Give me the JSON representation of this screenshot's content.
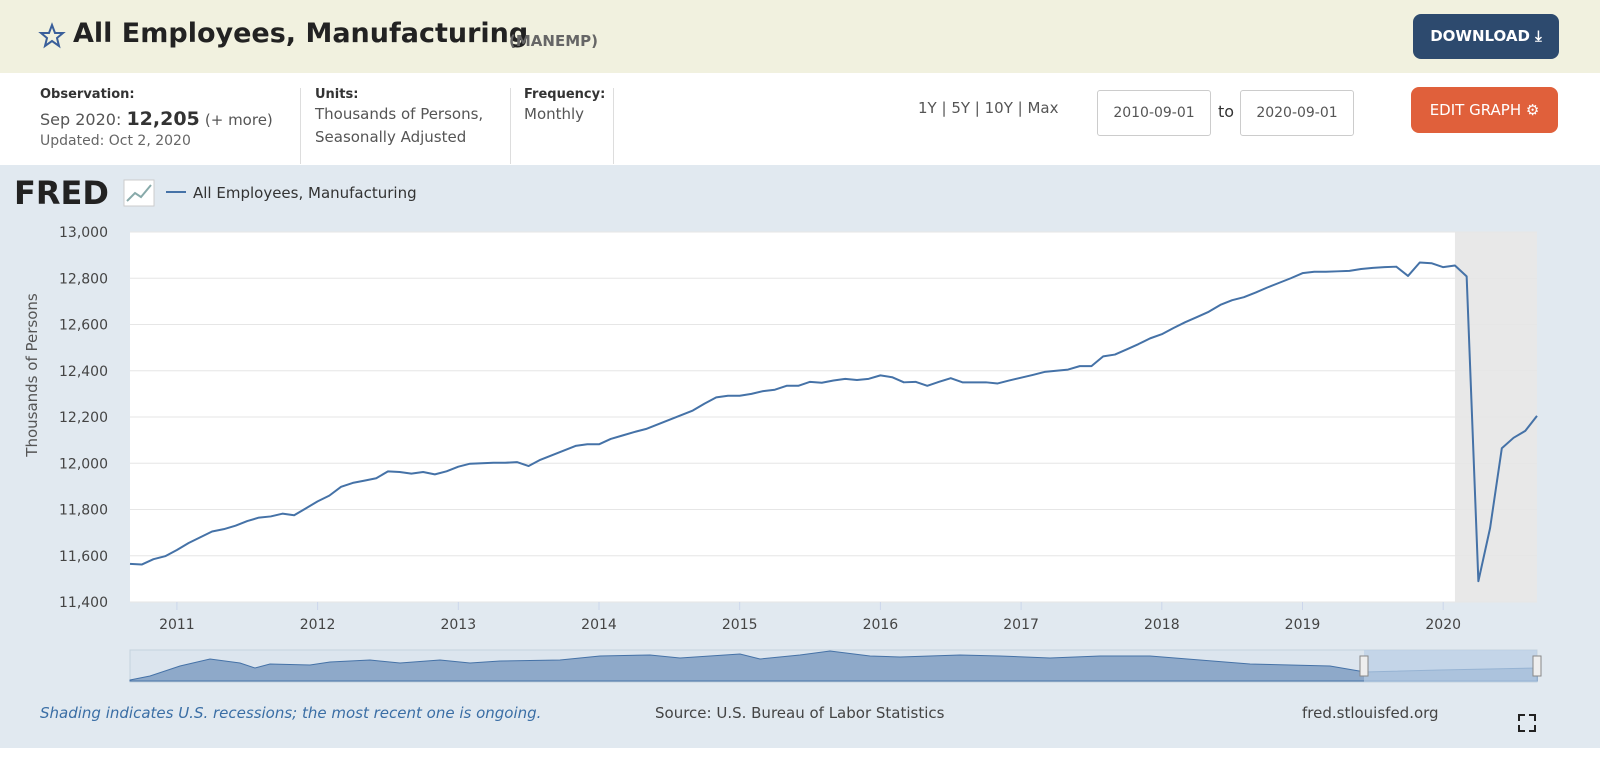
{
  "header": {
    "title": "All Employees, Manufacturing",
    "series_id": "(MANEMP)",
    "download": "DOWNLOAD"
  },
  "info": {
    "observation_label": "Observation:",
    "observation_period": "Sep 2020:",
    "observation_value": "12,205",
    "observation_more": "(+ more)",
    "updated": "Updated: Oct 2, 2020",
    "units_label": "Units:",
    "units_line1": "Thousands of Persons,",
    "units_line2": "Seasonally Adjusted",
    "frequency_label": "Frequency:",
    "frequency": "Monthly",
    "ranges": [
      "1Y",
      "5Y",
      "10Y",
      "Max"
    ],
    "date_from": "2010-09-01",
    "to": "to",
    "date_to": "2020-09-01",
    "edit_graph": "EDIT GRAPH"
  },
  "logo": "FRED",
  "footer": {
    "note": "Shading indicates U.S. recessions; the most recent one is ongoing.",
    "source": "Source: U.S. Bureau of Labor Statistics",
    "url": "fred.stlouisfed.org"
  },
  "chart_data": {
    "type": "line",
    "ylabel": "Thousands of Persons",
    "xlim": [
      "2010-09",
      "2020-09"
    ],
    "xticks": [
      2011,
      2012,
      2013,
      2014,
      2015,
      2016,
      2017,
      2018,
      2019,
      2020
    ],
    "ylim": [
      11400,
      13000
    ],
    "yticks": [
      {
        "value": 11400,
        "label": "11,400"
      },
      {
        "value": 11600,
        "label": "11,600"
      },
      {
        "value": 11800,
        "label": "11,800"
      },
      {
        "value": 12000,
        "label": "12,000"
      },
      {
        "value": 12200,
        "label": "12,200"
      },
      {
        "value": 12400,
        "label": "12,400"
      },
      {
        "value": 12600,
        "label": "12,600"
      },
      {
        "value": 12800,
        "label": "12,800"
      },
      {
        "value": 13000,
        "label": "13,000"
      }
    ],
    "grid": true,
    "recession": [
      "2020-02",
      "2020-09"
    ],
    "x": [
      "2010-09",
      "2010-10",
      "2010-11",
      "2010-12",
      "2011-01",
      "2011-02",
      "2011-03",
      "2011-04",
      "2011-05",
      "2011-06",
      "2011-07",
      "2011-08",
      "2011-09",
      "2011-10",
      "2011-11",
      "2011-12",
      "2012-01",
      "2012-02",
      "2012-03",
      "2012-04",
      "2012-05",
      "2012-06",
      "2012-07",
      "2012-08",
      "2012-09",
      "2012-10",
      "2012-11",
      "2012-12",
      "2013-01",
      "2013-02",
      "2013-03",
      "2013-04",
      "2013-05",
      "2013-06",
      "2013-07",
      "2013-08",
      "2013-09",
      "2013-10",
      "2013-11",
      "2013-12",
      "2014-01",
      "2014-02",
      "2014-03",
      "2014-04",
      "2014-05",
      "2014-06",
      "2014-07",
      "2014-08",
      "2014-09",
      "2014-10",
      "2014-11",
      "2014-12",
      "2015-01",
      "2015-02",
      "2015-03",
      "2015-04",
      "2015-05",
      "2015-06",
      "2015-07",
      "2015-08",
      "2015-09",
      "2015-10",
      "2015-11",
      "2015-12",
      "2016-01",
      "2016-02",
      "2016-03",
      "2016-04",
      "2016-05",
      "2016-06",
      "2016-07",
      "2016-08",
      "2016-09",
      "2016-10",
      "2016-11",
      "2016-12",
      "2017-01",
      "2017-02",
      "2017-03",
      "2017-04",
      "2017-05",
      "2017-06",
      "2017-07",
      "2017-08",
      "2017-09",
      "2017-10",
      "2017-11",
      "2017-12",
      "2018-01",
      "2018-02",
      "2018-03",
      "2018-04",
      "2018-05",
      "2018-06",
      "2018-07",
      "2018-08",
      "2018-09",
      "2018-10",
      "2018-11",
      "2018-12",
      "2019-01",
      "2019-02",
      "2019-03",
      "2019-04",
      "2019-05",
      "2019-06",
      "2019-07",
      "2019-08",
      "2019-09",
      "2019-10",
      "2019-11",
      "2019-12",
      "2020-01",
      "2020-02",
      "2020-03",
      "2020-04",
      "2020-05",
      "2020-06",
      "2020-07",
      "2020-08",
      "2020-09"
    ],
    "series": [
      {
        "name": "All Employees, Manufacturing",
        "color": "#4572a7",
        "values": [
          11565,
          11562,
          11585,
          11598,
          11625,
          11655,
          11680,
          11705,
          11715,
          11730,
          11750,
          11765,
          11770,
          11782,
          11775,
          11805,
          11835,
          11860,
          11898,
          11915,
          11925,
          11935,
          11965,
          11962,
          11955,
          11962,
          11952,
          11965,
          11985,
          11998,
          12000,
          12002,
          12002,
          12005,
          11988,
          12015,
          12035,
          12055,
          12075,
          12082,
          12082,
          12105,
          12120,
          12135,
          12148,
          12168,
          12188,
          12208,
          12228,
          12258,
          12285,
          12292,
          12292,
          12300,
          12312,
          12318,
          12335,
          12335,
          12352,
          12348,
          12358,
          12365,
          12360,
          12365,
          12380,
          12372,
          12350,
          12352,
          12335,
          12352,
          12368,
          12350,
          12350,
          12350,
          12345,
          12358,
          12370,
          12382,
          12395,
          12400,
          12405,
          12420,
          12420,
          12462,
          12470,
          12492,
          12515,
          12540,
          12558,
          12585,
          12610,
          12632,
          12655,
          12685,
          12705,
          12718,
          12738,
          12760,
          12780,
          12800,
          12822,
          12828,
          12828,
          12830,
          12832,
          12840,
          12845,
          12848,
          12850,
          12810,
          12868,
          12865,
          12848,
          12855,
          12808,
          11490,
          11720,
          12065,
          12110,
          12140,
          12205
        ]
      }
    ]
  }
}
